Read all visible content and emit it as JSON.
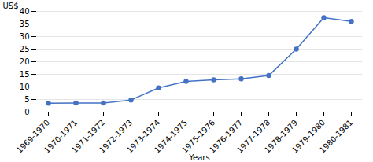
{
  "chart_data": {
    "type": "line",
    "categories": [
      "1969-1970",
      "1970-1971",
      "1971-1972",
      "1972-1973",
      "1973-1974",
      "1974-1975",
      "1975-1976",
      "1976-1977",
      "1977-1978",
      "1978-1979",
      "1979-1980",
      "1980-1981"
    ],
    "values": [
      3.5,
      3.6,
      3.6,
      4.8,
      9.6,
      12.2,
      12.8,
      13.2,
      14.5,
      25.0,
      37.5,
      36.0
    ],
    "color": "#4472C4",
    "marker": "circle",
    "xlabel": "Years",
    "ylabel": "US$",
    "ylim": [
      0,
      40
    ],
    "yticks": [
      0,
      5,
      10,
      15,
      20,
      25,
      30,
      35,
      40
    ],
    "grid": true
  }
}
